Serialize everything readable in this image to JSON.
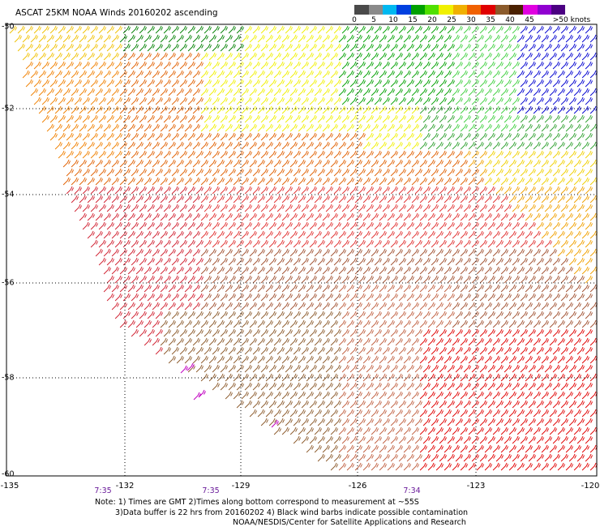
{
  "title": "ASCAT 25KM NOAA Winds 20160202 ascending",
  "colorbar": {
    "colors": [
      "#4a4a4a",
      "#8a8a8a",
      "#00b8f0",
      "#0050f0",
      "#00a000",
      "#50e000",
      "#f0f000",
      "#f0b000",
      "#f06000",
      "#e00000",
      "#8b5a2b",
      "#4a2000",
      "#e000e0",
      "#9000d0",
      "#4b0082"
    ],
    "labels": [
      "0",
      "5",
      "10",
      "15",
      "20",
      "25",
      "30",
      "35",
      "40",
      "45",
      ">50 knots"
    ]
  },
  "lat_labels": [
    "-50",
    "-52",
    "-54",
    "-56",
    "-58",
    "-60"
  ],
  "lon_labels": [
    "-135",
    "-132",
    "-129",
    "-126",
    "-123",
    "-120"
  ],
  "time_labels": [
    "7:35",
    "7:35",
    "7:34"
  ],
  "notes": {
    "line1": "Note: 1) Times are GMT 2)Times along bottom correspond to measurement at ~55S",
    "line2": "3)Data buffer is 22 hrs from 20160202 4) Black wind barbs indicate possible contamination",
    "line3": "NOAA/NESDIS/Center for Satellite Applications and Research"
  }
}
